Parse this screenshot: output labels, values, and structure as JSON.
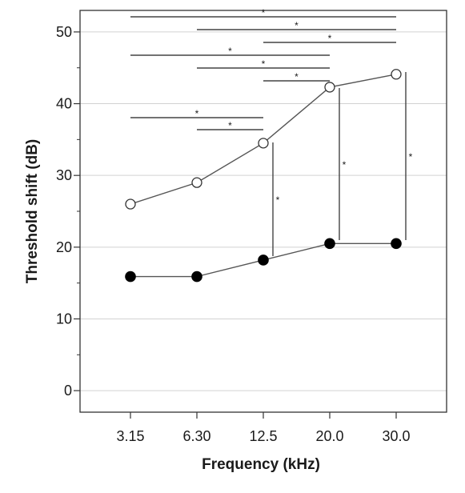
{
  "chart_data": {
    "type": "line",
    "xlabel": "Frequency (kHz)",
    "ylabel": "Threshold shift  (dB)",
    "categories": [
      "3.15",
      "6.30",
      "12.5",
      "20.0",
      "30.0"
    ],
    "ylim": [
      -3,
      53
    ],
    "yticks": [
      0,
      10,
      20,
      30,
      40,
      50
    ],
    "grid": true,
    "series": [
      {
        "marker": "open-circle",
        "values": [
          26,
          29,
          34.5,
          42.3,
          44.1
        ]
      },
      {
        "marker": "filled-circle",
        "values": [
          15.9,
          15.9,
          18.2,
          20.5,
          20.5
        ]
      }
    ],
    "annotations": {
      "symbol": "*",
      "horizontal_brackets": [
        {
          "from": "3.15",
          "to": "30.0",
          "label": "*"
        },
        {
          "from": "6.30",
          "to": "30.0",
          "label": "*"
        },
        {
          "from": "12.5",
          "to": "30.0",
          "label": "*"
        },
        {
          "from": "3.15",
          "to": "20.0",
          "label": "*"
        },
        {
          "from": "6.30",
          "to": "20.0",
          "label": "*"
        },
        {
          "from": "12.5",
          "to": "20.0",
          "label": "*"
        },
        {
          "from": "3.15",
          "to": "12.5",
          "label": "*"
        },
        {
          "from": "6.30",
          "to": "12.5",
          "label": "*"
        }
      ],
      "vertical_brackets": [
        {
          "at": "12.5",
          "label": "*"
        },
        {
          "at": "20.0",
          "label": "*"
        },
        {
          "at": "30.0",
          "label": "*"
        }
      ]
    }
  }
}
